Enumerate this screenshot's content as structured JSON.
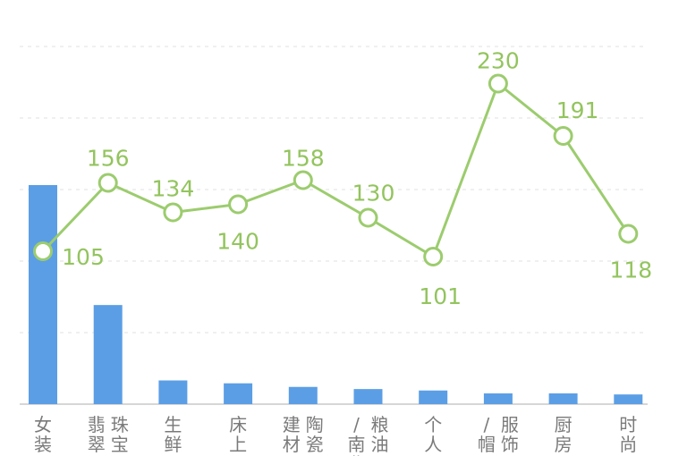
{
  "chart_data": {
    "type": "bar",
    "categories": [
      "女装",
      "翡翠珠宝",
      "生鲜",
      "床上",
      "建陶瓷",
      "/南粮北油",
      "个人",
      "/帽服饰",
      "厨房",
      "时尚"
    ],
    "category_columns": [
      [
        "女装"
      ],
      [
        "翡翠",
        "珠宝"
      ],
      [
        "生鲜"
      ],
      [
        "床上"
      ],
      [
        "建材",
        "陶瓷"
      ],
      [
        "/南北",
        "粮油"
      ],
      [
        "个人"
      ],
      [
        "/帽子",
        "服饰"
      ],
      [
        "厨房"
      ],
      [
        "时尚"
      ]
    ],
    "series": [
      {
        "type": "bar",
        "values": [
          610,
          276,
          66,
          58,
          48,
          42,
          38,
          30,
          30,
          27
        ]
      },
      {
        "type": "line",
        "values": [
          105,
          156,
          134,
          140,
          158,
          130,
          101,
          230,
          191,
          118
        ]
      }
    ],
    "colors": {
      "bar": "#5b9ee5",
      "line": "#9ccc6e",
      "label": "#93c45e"
    },
    "grid": true
  }
}
